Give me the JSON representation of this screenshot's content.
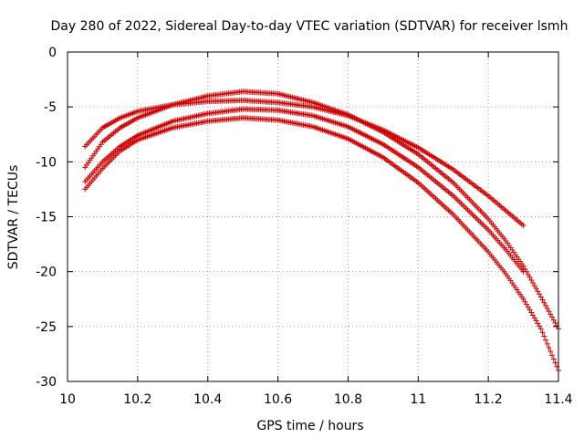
{
  "chart_data": {
    "type": "scatter",
    "title": "Day 280 of 2022, Sidereal Day-to-day VTEC variation (SDTVAR) for receiver lsmh",
    "xlabel": "GPS time / hours",
    "ylabel": "SDTVAR / TECUs",
    "xlim": [
      10,
      11.4
    ],
    "ylim": [
      -30,
      0
    ],
    "xticks": [
      10,
      10.2,
      10.4,
      10.6,
      10.8,
      11,
      11.2,
      11.4
    ],
    "xtick_labels": [
      "10",
      "10.2",
      "10.4",
      "10.6",
      "10.8",
      "11",
      "11.2",
      "11.4"
    ],
    "yticks": [
      0,
      -5,
      -10,
      -15,
      -20,
      -25,
      -30
    ],
    "ytick_labels": [
      "0",
      "-5",
      "-10",
      "-15",
      "-20",
      "-25",
      "-30"
    ],
    "grid": true,
    "marker": "+",
    "color": "#cc0000",
    "series": [
      {
        "name": "track-1",
        "x": [
          10.05,
          10.1,
          10.15,
          10.2,
          10.3,
          10.4,
          10.5,
          10.6,
          10.7,
          10.8,
          10.9,
          11.0,
          11.1,
          11.2,
          11.3
        ],
        "y": [
          -8.6,
          -6.9,
          -6.0,
          -5.4,
          -4.8,
          -4.5,
          -4.4,
          -4.6,
          -5.0,
          -5.8,
          -7.1,
          -8.7,
          -10.7,
          -13.1,
          -15.8
        ]
      },
      {
        "name": "track-2",
        "x": [
          10.05,
          10.1,
          10.15,
          10.2,
          10.3,
          10.4,
          10.5,
          10.6,
          10.7,
          10.8,
          10.9,
          11.0,
          11.1,
          11.2,
          11.25,
          11.3,
          11.35,
          11.4
        ],
        "y": [
          -10.5,
          -8.2,
          -6.9,
          -6.0,
          -4.8,
          -4.0,
          -3.6,
          -3.8,
          -4.6,
          -5.7,
          -7.3,
          -9.3,
          -11.9,
          -15.2,
          -17.2,
          -19.5,
          -22.3,
          -25.2
        ]
      },
      {
        "name": "track-3",
        "x": [
          10.05,
          10.1,
          10.15,
          10.2,
          10.3,
          10.4,
          10.5,
          10.6,
          10.7,
          10.8,
          10.9,
          11.0,
          11.1,
          11.2,
          11.25,
          11.3
        ],
        "y": [
          -11.8,
          -10.0,
          -8.6,
          -7.6,
          -6.3,
          -5.6,
          -5.2,
          -5.3,
          -5.8,
          -6.8,
          -8.4,
          -10.5,
          -13.1,
          -16.2,
          -18.0,
          -20.0
        ]
      },
      {
        "name": "track-4",
        "x": [
          10.05,
          10.1,
          10.15,
          10.2,
          10.3,
          10.4,
          10.5,
          10.6,
          10.7,
          10.8,
          10.9,
          11.0,
          11.1,
          11.2,
          11.25,
          11.3,
          11.35,
          11.4
        ],
        "y": [
          -12.5,
          -10.6,
          -9.0,
          -8.0,
          -6.9,
          -6.3,
          -6.0,
          -6.2,
          -6.8,
          -7.9,
          -9.6,
          -11.9,
          -14.8,
          -18.2,
          -20.2,
          -22.5,
          -25.2,
          -29.0
        ]
      }
    ]
  }
}
